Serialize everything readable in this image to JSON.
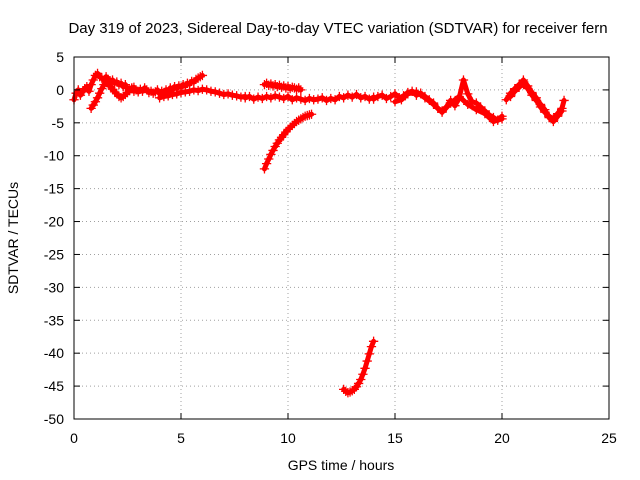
{
  "chart_data": {
    "type": "scatter",
    "title": "Day 319 of 2023, Sidereal Day-to-day VTEC variation (SDTVAR) for receiver fern",
    "xlabel": "GPS time / hours",
    "ylabel": "SDTVAR / TECUs",
    "xlim": [
      0,
      25
    ],
    "ylim": [
      -50,
      5
    ],
    "xticks": [
      0,
      5,
      10,
      15,
      20,
      25
    ],
    "yticks": [
      5,
      0,
      -5,
      -10,
      -15,
      -20,
      -25,
      -30,
      -35,
      -40,
      -45,
      -50
    ],
    "grid": true,
    "legend": "none",
    "marker": "plus",
    "color": "#ff0000",
    "series": [
      {
        "x": [
          0.0,
          0.1,
          0.2,
          0.3,
          0.4,
          0.5,
          0.6,
          0.7,
          0.8,
          0.9,
          1.0,
          1.1,
          1.2,
          1.3,
          1.4,
          1.5,
          1.6,
          1.7,
          1.8,
          1.9,
          2.0,
          2.1,
          2.2,
          2.3,
          2.4,
          2.5,
          2.6,
          2.7,
          2.8,
          2.9,
          3.0,
          3.1,
          3.2,
          3.3,
          3.4,
          3.5,
          3.6,
          3.7,
          3.8,
          3.9,
          4.0,
          4.1,
          4.2,
          4.3,
          4.4,
          4.5,
          4.6,
          4.7,
          4.8,
          4.9,
          5.0,
          5.1,
          5.2,
          5.3,
          5.4,
          5.5,
          5.6,
          5.7,
          5.8,
          5.9,
          6.0
        ],
        "y": [
          -1.5,
          -0.5,
          0.0,
          -0.8,
          -0.3,
          0.2,
          0.5,
          -0.2,
          0.8,
          1.5,
          2.2,
          2.5,
          2.0,
          1.8,
          1.5,
          2.0,
          1.6,
          1.2,
          1.5,
          1.0,
          1.2,
          0.8,
          1.0,
          0.5,
          0.8,
          0.2,
          0.0,
          0.3,
          -0.2,
          0.0,
          -0.3,
          0.1,
          -0.2,
          0.3,
          0.0,
          -0.4,
          -0.2,
          -0.5,
          -0.3,
          0.0,
          -0.6,
          -0.2,
          -0.4,
          0.0,
          -0.3,
          0.3,
          0.0,
          0.5,
          0.2,
          0.6,
          0.4,
          0.8,
          0.6,
          1.0,
          0.9,
          1.3,
          1.2,
          1.6,
          1.8,
          2.0,
          2.2
        ]
      },
      {
        "x": [
          0.8,
          0.9,
          1.0,
          1.1,
          1.2,
          1.3,
          1.4,
          1.5,
          1.6,
          1.7,
          1.8,
          1.9,
          2.0,
          2.1,
          2.2,
          2.3,
          2.4,
          2.5,
          2.6,
          2.7,
          2.8
        ],
        "y": [
          -2.8,
          -2.3,
          -1.8,
          -1.2,
          -0.5,
          0.2,
          0.8,
          1.2,
          0.9,
          0.5,
          0.1,
          -0.3,
          -0.6,
          -1.0,
          -1.2,
          -1.0,
          -0.7,
          -0.4,
          -0.1,
          0.2,
          0.4
        ]
      },
      {
        "x": [
          4.0,
          4.2,
          4.4,
          4.6,
          4.8,
          5.0,
          5.2,
          5.4,
          5.6,
          5.8,
          6.0,
          6.2,
          6.4,
          6.6,
          6.8,
          7.0,
          7.2,
          7.4,
          7.6,
          7.8,
          8.0
        ],
        "y": [
          -1.2,
          -1.0,
          -0.9,
          -0.7,
          -0.6,
          -0.4,
          -0.3,
          -0.2,
          0.0,
          -0.1,
          0.1,
          0.0,
          -0.2,
          -0.3,
          -0.5,
          -0.7,
          -0.6,
          -0.8,
          -0.9,
          -1.1,
          -1.0
        ]
      },
      {
        "x": [
          8.0,
          8.2,
          8.4,
          8.6,
          8.8,
          9.0,
          9.2,
          9.4,
          9.6,
          9.8,
          10.0,
          10.2,
          10.4,
          10.6,
          10.8,
          11.0,
          11.2,
          11.4,
          11.6,
          11.8,
          12.0,
          12.2,
          12.4,
          12.6,
          12.8,
          13.0,
          13.2,
          13.4,
          13.6,
          13.8,
          14.0
        ],
        "y": [
          -1.2,
          -1.0,
          -1.4,
          -1.1,
          -1.3,
          -1.0,
          -1.2,
          -0.9,
          -1.1,
          -1.3,
          -1.0,
          -1.5,
          -1.2,
          -1.4,
          -1.6,
          -1.3,
          -1.5,
          -1.4,
          -1.2,
          -1.6,
          -1.3,
          -1.5,
          -1.0,
          -1.2,
          -0.8,
          -1.1,
          -0.7,
          -1.2,
          -1.0,
          -1.4,
          -1.1
        ]
      },
      {
        "x": [
          8.9,
          9.0,
          9.1,
          9.2,
          9.3,
          9.4,
          9.5,
          9.6,
          9.7,
          9.8,
          9.9,
          10.0,
          10.1,
          10.2,
          10.3,
          10.4,
          10.5,
          10.6
        ],
        "y": [
          0.8,
          1.0,
          0.7,
          0.9,
          0.6,
          0.8,
          0.5,
          0.7,
          0.4,
          0.6,
          0.3,
          0.5,
          0.2,
          0.4,
          0.3,
          0.1,
          0.3,
          0.0
        ]
      },
      {
        "x": [
          8.9,
          9.0,
          9.1,
          9.2,
          9.3,
          9.4,
          9.5,
          9.6,
          9.7,
          9.8,
          9.9,
          10.0,
          10.1,
          10.2,
          10.3,
          10.4,
          10.5,
          10.6,
          10.7,
          10.8,
          10.9,
          11.0,
          11.1
        ],
        "y": [
          -12.0,
          -11.2,
          -10.5,
          -9.8,
          -9.2,
          -8.6,
          -8.1,
          -7.6,
          -7.2,
          -6.8,
          -6.4,
          -6.0,
          -5.7,
          -5.4,
          -5.1,
          -4.8,
          -4.6,
          -4.4,
          -4.2,
          -4.0,
          -3.9,
          -3.8,
          -3.7
        ]
      },
      {
        "x": [
          12.6,
          12.7,
          12.8,
          12.9,
          13.0,
          13.1,
          13.2,
          13.3,
          13.4,
          13.5,
          13.6,
          13.7,
          13.8,
          13.9,
          14.0
        ],
        "y": [
          -45.5,
          -45.8,
          -46.0,
          -45.9,
          -45.7,
          -45.5,
          -45.1,
          -44.6,
          -44.0,
          -43.2,
          -42.3,
          -41.2,
          -40.1,
          -39.0,
          -38.2
        ]
      },
      {
        "x": [
          14.0,
          14.2,
          14.4,
          14.6,
          14.8,
          15.0,
          15.2,
          15.4,
          15.6,
          15.8,
          16.0,
          16.2,
          16.4,
          16.6,
          16.8,
          17.0,
          17.2,
          17.4,
          17.6,
          17.8,
          18.0,
          18.2,
          18.4,
          18.6,
          18.8,
          19.0,
          19.2,
          19.4,
          19.6,
          19.8,
          20.0
        ],
        "y": [
          -1.4,
          -1.0,
          -0.8,
          -1.3,
          -1.0,
          -0.6,
          -1.2,
          -0.9,
          -0.4,
          -0.2,
          -0.8,
          -0.5,
          -1.0,
          -1.5,
          -2.0,
          -2.8,
          -3.2,
          -2.6,
          -1.6,
          -2.4,
          -1.2,
          1.5,
          -0.6,
          -1.8,
          -2.0,
          -2.6,
          -3.2,
          -3.8,
          -4.2,
          -4.6,
          -4.0
        ]
      },
      {
        "x": [
          15.0,
          15.3,
          15.6,
          16.0,
          16.4,
          16.8,
          17.2,
          17.6,
          18.0,
          18.4,
          18.8,
          19.2,
          19.6,
          20.0
        ],
        "y": [
          -1.8,
          -1.5,
          -0.6,
          -0.3,
          -1.2,
          -2.2,
          -3.4,
          -2.0,
          -1.0,
          -2.2,
          -3.0,
          -3.6,
          -4.8,
          -4.4
        ]
      },
      {
        "x": [
          20.2,
          20.4,
          20.6,
          20.8,
          21.0,
          21.2,
          21.4,
          21.6,
          21.8,
          22.0,
          22.2,
          22.4,
          22.6,
          22.8
        ],
        "y": [
          -1.5,
          -0.5,
          0.2,
          0.8,
          1.5,
          0.6,
          -0.4,
          -1.2,
          -2.2,
          -3.0,
          -4.2,
          -4.8,
          -4.0,
          -3.2
        ]
      },
      {
        "x": [
          20.4,
          20.6,
          20.8,
          21.0,
          21.2,
          21.4,
          21.6,
          21.8,
          22.0,
          22.2,
          22.4,
          22.6,
          22.8,
          22.9
        ],
        "y": [
          -1.0,
          -0.2,
          0.4,
          1.0,
          0.2,
          -0.8,
          -1.6,
          -2.6,
          -3.4,
          -4.0,
          -4.4,
          -3.6,
          -2.8,
          -1.6
        ]
      }
    ]
  }
}
